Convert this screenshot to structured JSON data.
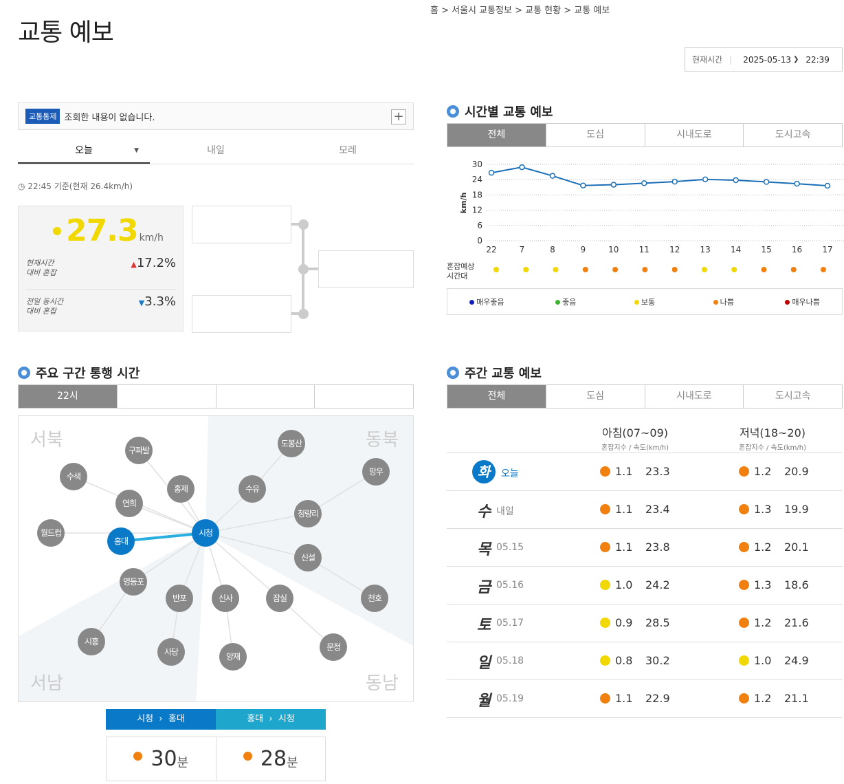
{
  "page": {
    "title": "교통 예보",
    "breadcrumb": "홈 > 서울시 교통정보 > 교통 현황 > 교통 예보",
    "now_label": "현재시간",
    "now_date": "2025-05-13",
    "now_time": "22:39"
  },
  "notice": {
    "tag": "교통통제",
    "text": "조회한 내용이 없습니다.",
    "plus": "+"
  },
  "day_tabs": [
    "오늘",
    "내일",
    "모레"
  ],
  "base_time": "22:45 기준(현재 26.4km/h)",
  "speed": {
    "value": "27.3",
    "unit": "km/h",
    "cmp1_label_1": "현재시간",
    "cmp1_label_2": "대비 혼잡",
    "cmp1_dir": "▲",
    "cmp1_val": "17.2%",
    "cmp2_label_1": "전일 동시간",
    "cmp2_label_2": "대비 혼잡",
    "cmp2_dir": "▼",
    "cmp2_val": "3.3%"
  },
  "hourly": {
    "title": "시간별 교통 예보",
    "tabs": [
      "전체",
      "도심",
      "시내도로",
      "도시고속"
    ],
    "ylabel": "km/h",
    "congestion_label_1": "혼잡예상",
    "congestion_label_2": "시간대",
    "congestion_colors": [
      "#f0d800",
      "#f0d800",
      "#f0d800",
      "#f08010",
      "#f08010",
      "#f08010",
      "#f08010",
      "#f0d800",
      "#f0d800",
      "#f08010",
      "#f08010",
      "#f08010"
    ],
    "legend": [
      {
        "label": "매우좋음",
        "color": "#1020c0"
      },
      {
        "label": "좋음",
        "color": "#40b030"
      },
      {
        "label": "보통",
        "color": "#f0d800"
      },
      {
        "label": "나쁨",
        "color": "#f08010"
      },
      {
        "label": "매우나쁨",
        "color": "#c00000"
      }
    ]
  },
  "chart_data": {
    "type": "line",
    "x": [
      "22",
      "7",
      "8",
      "9",
      "10",
      "11",
      "12",
      "13",
      "14",
      "15",
      "16",
      "17"
    ],
    "series": [
      {
        "values": [
          26.7,
          28.9,
          25.5,
          21.7,
          22.0,
          22.6,
          23.2,
          24.1,
          23.8,
          23.1,
          22.4,
          21.6
        ]
      }
    ],
    "ylim": [
      0,
      30
    ],
    "yticks": [
      0,
      6,
      12,
      18,
      24,
      30
    ],
    "ylabel": "km/h",
    "grid": true
  },
  "sections": {
    "title": "주요 구간 통행 시간",
    "time_tabs": [
      "22시",
      "",
      "",
      ""
    ],
    "corners": [
      "서북",
      "동북",
      "서남",
      "동남"
    ],
    "nodes": [
      "구파발",
      "도봉산",
      "수색",
      "홍제",
      "수유",
      "망우",
      "연희",
      "청량리",
      "월드컵",
      "홍대",
      "시청",
      "신설",
      "영등포",
      "반포",
      "신사",
      "잠실",
      "천호",
      "시흥",
      "사당",
      "양재",
      "문정"
    ],
    "route_a": "시청",
    "route_b": "홍대",
    "route_arrow": "›",
    "time_ab": "30",
    "time_ba": "28",
    "time_unit": "분"
  },
  "weekly": {
    "title": "주간 교통 예보",
    "tabs": [
      "전체",
      "도심",
      "시내도로",
      "도시고속"
    ],
    "morning": "아침(07~09)",
    "evening": "저녁(18~20)",
    "sub": "혼잡지수 / 속도(km/h)",
    "rows": [
      {
        "day": "화",
        "date": "오늘",
        "m_idx": "1.1",
        "m_spd": "23.3",
        "m_color": "#f08010",
        "e_idx": "1.2",
        "e_spd": "20.9",
        "e_color": "#f08010"
      },
      {
        "day": "수",
        "date": "내일",
        "m_idx": "1.1",
        "m_spd": "23.4",
        "m_color": "#f08010",
        "e_idx": "1.3",
        "e_spd": "19.9",
        "e_color": "#f08010"
      },
      {
        "day": "목",
        "date": "05.15",
        "m_idx": "1.1",
        "m_spd": "23.8",
        "m_color": "#f08010",
        "e_idx": "1.2",
        "e_spd": "20.1",
        "e_color": "#f08010"
      },
      {
        "day": "금",
        "date": "05.16",
        "m_idx": "1.0",
        "m_spd": "24.2",
        "m_color": "#f0d800",
        "e_idx": "1.3",
        "e_spd": "18.6",
        "e_color": "#f08010"
      },
      {
        "day": "토",
        "date": "05.17",
        "m_idx": "0.9",
        "m_spd": "28.5",
        "m_color": "#f0d800",
        "e_idx": "1.2",
        "e_spd": "21.6",
        "e_color": "#f08010"
      },
      {
        "day": "일",
        "date": "05.18",
        "m_idx": "0.8",
        "m_spd": "30.2",
        "m_color": "#f0d800",
        "e_idx": "1.0",
        "e_spd": "24.9",
        "e_color": "#f0d800"
      },
      {
        "day": "월",
        "date": "05.19",
        "m_idx": "1.1",
        "m_spd": "22.9",
        "m_color": "#f08010",
        "e_idx": "1.2",
        "e_spd": "21.1",
        "e_color": "#f08010"
      }
    ]
  }
}
